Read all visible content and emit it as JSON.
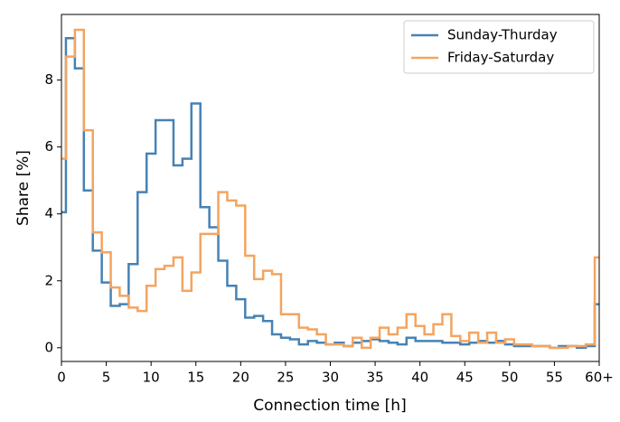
{
  "chart_data": {
    "type": "step",
    "xlabel": "Connection time [h]",
    "ylabel": "Share [%]",
    "x": [
      0,
      1,
      2,
      3,
      4,
      5,
      6,
      7,
      8,
      9,
      10,
      11,
      12,
      13,
      14,
      15,
      16,
      17,
      18,
      19,
      20,
      21,
      22,
      23,
      24,
      25,
      26,
      27,
      28,
      29,
      30,
      31,
      32,
      33,
      34,
      35,
      36,
      37,
      38,
      39,
      40,
      41,
      42,
      43,
      44,
      45,
      46,
      47,
      48,
      49,
      50,
      51,
      52,
      53,
      54,
      55,
      56,
      57,
      58,
      59,
      60
    ],
    "series": [
      {
        "name": "Sunday-Thurday",
        "color": "#4682b4",
        "values": [
          4.05,
          9.25,
          8.35,
          4.7,
          2.9,
          1.95,
          1.25,
          1.3,
          2.5,
          4.65,
          5.8,
          6.8,
          6.8,
          5.45,
          5.65,
          7.3,
          4.2,
          3.6,
          2.6,
          1.85,
          1.45,
          0.9,
          0.95,
          0.8,
          0.4,
          0.3,
          0.25,
          0.1,
          0.2,
          0.15,
          0.1,
          0.15,
          0.05,
          0.15,
          0.2,
          0.25,
          0.2,
          0.15,
          0.1,
          0.3,
          0.2,
          0.2,
          0.2,
          0.15,
          0.15,
          0.1,
          0.15,
          0.2,
          0.15,
          0.2,
          0.1,
          0.05,
          0.05,
          0.05,
          0.05,
          0.0,
          0.05,
          0.05,
          0.0,
          0.05,
          1.3
        ]
      },
      {
        "name": "Friday-Saturday",
        "color": "#f4a460",
        "values": [
          5.65,
          8.7,
          9.5,
          6.5,
          3.45,
          2.85,
          1.8,
          1.55,
          1.2,
          1.1,
          1.85,
          2.35,
          2.45,
          2.7,
          1.7,
          2.25,
          3.4,
          3.4,
          4.65,
          4.4,
          4.25,
          2.75,
          2.05,
          2.3,
          2.2,
          1.0,
          1.0,
          0.6,
          0.55,
          0.4,
          0.1,
          0.1,
          0.05,
          0.3,
          0.0,
          0.3,
          0.6,
          0.4,
          0.6,
          1.0,
          0.65,
          0.4,
          0.7,
          1.0,
          0.35,
          0.2,
          0.45,
          0.15,
          0.45,
          0.15,
          0.25,
          0.1,
          0.1,
          0.05,
          0.05,
          0.0,
          0.0,
          0.05,
          0.05,
          0.1,
          2.7
        ]
      }
    ],
    "xlim": [
      0,
      60
    ],
    "ylim": [
      -0.41,
      9.96
    ],
    "xticks": [
      0,
      5,
      10,
      15,
      20,
      25,
      30,
      35,
      40,
      45,
      50,
      55,
      {
        "value": 60,
        "label": "60+"
      }
    ],
    "yticks": [
      0,
      2,
      4,
      6,
      8
    ],
    "legend": "upper right",
    "grid": false
  }
}
